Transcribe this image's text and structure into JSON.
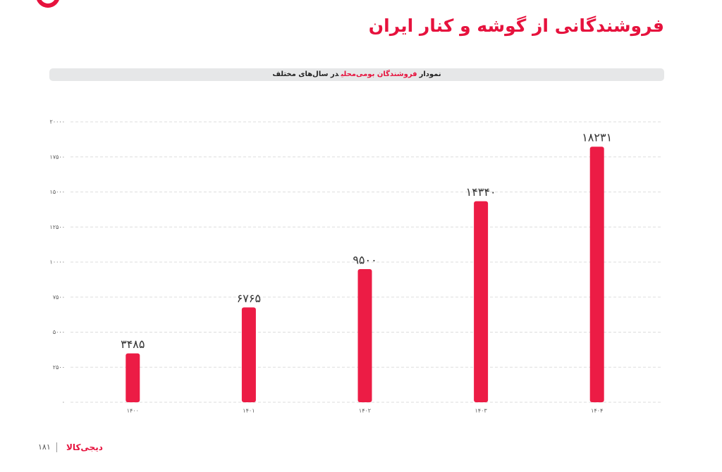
{
  "title": "فروشندگانی از گوشه و کنار ایران",
  "subtitle": {
    "prefix": "نمودار",
    "highlight": "فروشندگان بومی‌محلی",
    "suffix": "در سال‌های مختلف"
  },
  "chart_data": {
    "type": "bar",
    "categories": [
      "۱۴۰۰",
      "۱۴۰۱",
      "۱۴۰۲",
      "۱۴۰۳",
      "۱۴۰۴"
    ],
    "values": [
      3485,
      6765,
      9500,
      14340,
      18231
    ],
    "value_labels": [
      "۳۴۸۵",
      "۶۷۶۵",
      "۹۵۰۰",
      "۱۴۳۴۰",
      "۱۸۲۳۱"
    ],
    "color": "#ec1c45",
    "ylim": [
      0,
      20000
    ],
    "yticks": [
      {
        "value": 0,
        "label": "۰"
      },
      {
        "value": 2500,
        "label": "۲۵۰۰"
      },
      {
        "value": 5000,
        "label": "۵۰۰۰"
      },
      {
        "value": 7500,
        "label": "۷۵۰۰"
      },
      {
        "value": 10000,
        "label": "۱۰۰۰۰"
      },
      {
        "value": 12500,
        "label": "۱۲۵۰۰"
      },
      {
        "value": 15000,
        "label": "۱۵۰۰۰"
      },
      {
        "value": 17500,
        "label": "۱۷۵۰۰"
      },
      {
        "value": 20000,
        "label": "۲۰۰۰۰"
      }
    ],
    "grid": true
  },
  "footer": {
    "brand": "دیجی‌کالا",
    "page": "۱۸۱"
  }
}
